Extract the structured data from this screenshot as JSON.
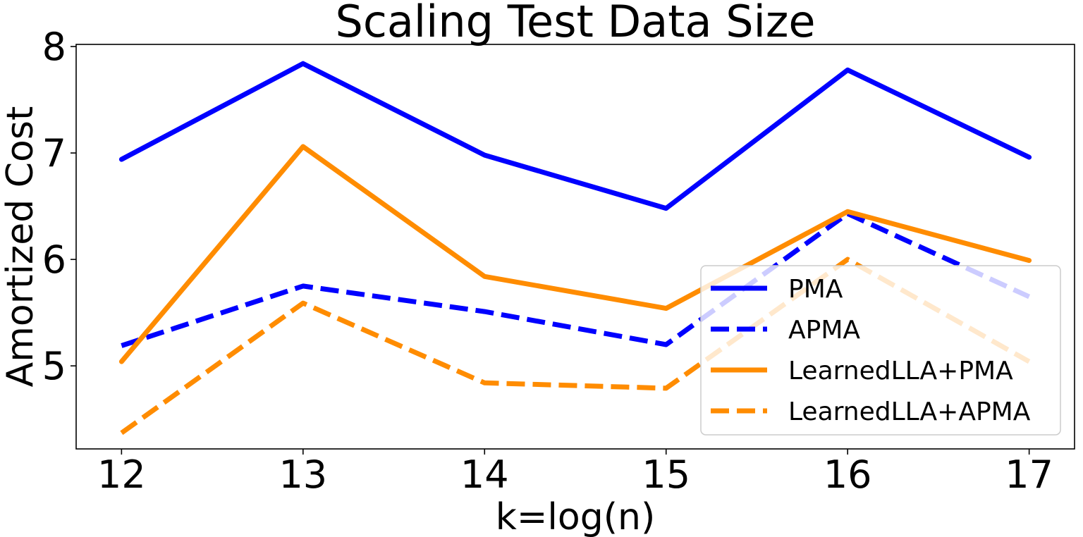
{
  "chart_data": {
    "type": "line",
    "title": "Scaling Test Data Size",
    "xlabel": "k=log(n)",
    "ylabel": "Amortized Cost",
    "x": [
      12,
      13,
      14,
      15,
      16,
      17
    ],
    "xlim": [
      11.75,
      17.25
    ],
    "ylim": [
      4.22,
      8.02
    ],
    "xticks": [
      "12",
      "13",
      "14",
      "15",
      "16",
      "17"
    ],
    "yticks": [
      "5",
      "6",
      "7",
      "8"
    ],
    "ytick_values": [
      5,
      6,
      7,
      8
    ],
    "grid": false,
    "legend_position": "lower-right",
    "series": [
      {
        "name": "PMA",
        "color": "#0000ff",
        "style": "solid",
        "values": [
          6.94,
          7.84,
          6.98,
          6.48,
          7.78,
          6.96
        ]
      },
      {
        "name": "APMA",
        "color": "#0000ff",
        "style": "dashed",
        "values": [
          5.19,
          5.75,
          5.51,
          5.2,
          6.43,
          5.65
        ]
      },
      {
        "name": "LearnedLLA+PMA",
        "color": "#ff8c00",
        "style": "solid",
        "values": [
          5.04,
          7.06,
          5.84,
          5.54,
          6.45,
          5.99
        ]
      },
      {
        "name": "LearnedLLA+APMA",
        "color": "#ff8c00",
        "style": "dashed",
        "values": [
          4.37,
          5.59,
          4.84,
          4.79,
          6.0,
          5.04
        ]
      }
    ]
  }
}
